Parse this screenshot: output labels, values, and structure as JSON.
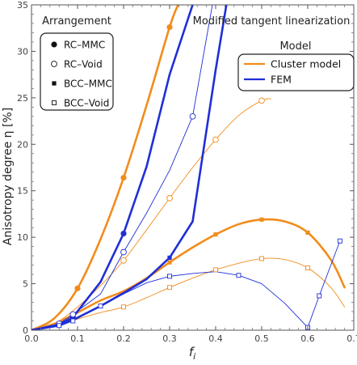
{
  "chart_data": {
    "type": "line",
    "title": "Modified tangent  linearization",
    "xlabel": "f",
    "xlabel_sub": "i",
    "ylabel": "Anisotropy degree η [%]",
    "xlim": [
      0.0,
      0.7
    ],
    "ylim": [
      0,
      35
    ],
    "x_ticks": [
      "0.0",
      "0.1",
      "0.2",
      "0.3",
      "0.4",
      "0.5",
      "0.6",
      "0.7"
    ],
    "y_ticks": [
      "0",
      "5",
      "10",
      "15",
      "20",
      "25",
      "30",
      "35"
    ],
    "grid": false,
    "legend_arrangement": {
      "title": "Arrangement",
      "placement": "top-left",
      "entries": [
        {
          "label": "RC–MMC",
          "marker": "filled-circle"
        },
        {
          "label": "RC–Void",
          "marker": "open-circle"
        },
        {
          "label": "BCC–MMC",
          "marker": "filled-square"
        },
        {
          "label": "BCC–Void",
          "marker": "open-square"
        }
      ]
    },
    "legend_model": {
      "title": "Model",
      "placement": "top-right",
      "entries": [
        {
          "label": "Cluster model",
          "color": "#f28c1a"
        },
        {
          "label": "FEM",
          "color": "#1f2fd6"
        }
      ]
    },
    "colors": {
      "cluster": "#f28c1a",
      "fem": "#1f2fd6"
    },
    "series": [
      {
        "model": "Cluster model",
        "arrangement": "RC–MMC",
        "style": "thick",
        "x": [
          0,
          0.05,
          0.1,
          0.15,
          0.2,
          0.25,
          0.3,
          0.32,
          0.34
        ],
        "y": [
          0,
          1.3,
          4.5,
          9.8,
          16.4,
          24.2,
          32.6,
          35.2,
          37.5
        ],
        "marker_x": [
          0.1,
          0.2,
          0.3
        ],
        "marker_y": [
          4.5,
          16.4,
          32.6
        ]
      },
      {
        "model": "Cluster model",
        "arrangement": "RC–Void",
        "style": "thin",
        "x": [
          0,
          0.05,
          0.1,
          0.15,
          0.2,
          0.25,
          0.3,
          0.35,
          0.4,
          0.45,
          0.5,
          0.52
        ],
        "y": [
          0,
          0.7,
          2.5,
          4.8,
          7.5,
          10.8,
          14.2,
          17.5,
          20.5,
          23.1,
          24.7,
          24.9
        ],
        "marker_x": [
          0.2,
          0.3,
          0.4,
          0.5
        ],
        "marker_y": [
          7.5,
          14.2,
          20.5,
          24.7
        ]
      },
      {
        "model": "Cluster model",
        "arrangement": "BCC–MMC",
        "style": "thick",
        "x": [
          0,
          0.05,
          0.1,
          0.15,
          0.2,
          0.25,
          0.3,
          0.35,
          0.4,
          0.45,
          0.5,
          0.55,
          0.6,
          0.65,
          0.68
        ],
        "y": [
          0,
          0.7,
          1.9,
          3.2,
          4.2,
          5.6,
          7.3,
          8.9,
          10.3,
          11.4,
          11.9,
          11.7,
          10.5,
          7.6,
          4.6
        ],
        "marker_x": [
          0.3,
          0.4,
          0.5,
          0.6
        ],
        "marker_y": [
          7.3,
          10.3,
          11.9,
          10.5
        ]
      },
      {
        "model": "Cluster model",
        "arrangement": "BCC–Void",
        "style": "thin",
        "x": [
          0,
          0.05,
          0.1,
          0.15,
          0.2,
          0.25,
          0.3,
          0.35,
          0.4,
          0.45,
          0.5,
          0.55,
          0.6,
          0.65,
          0.68
        ],
        "y": [
          0,
          0.4,
          1.2,
          1.9,
          2.5,
          3.5,
          4.6,
          5.6,
          6.5,
          7.2,
          7.7,
          7.6,
          6.7,
          4.6,
          2.5
        ],
        "marker_x": [
          0.2,
          0.3,
          0.4,
          0.5,
          0.6
        ],
        "marker_y": [
          2.5,
          4.6,
          6.5,
          7.7,
          6.7
        ]
      },
      {
        "model": "FEM",
        "arrangement": "RC–MMC",
        "style": "thick",
        "x": [
          0,
          0.06,
          0.09,
          0.15,
          0.2,
          0.25,
          0.3,
          0.35,
          0.37
        ],
        "y": [
          0,
          0.6,
          1.4,
          5.2,
          10.4,
          17.6,
          27.5,
          35.0,
          37.0
        ],
        "marker_x": [
          0.06,
          0.09,
          0.2
        ],
        "marker_y": [
          0.6,
          1.4,
          10.4
        ]
      },
      {
        "model": "FEM",
        "arrangement": "RC–Void",
        "style": "thin",
        "x": [
          0,
          0.06,
          0.09,
          0.15,
          0.2,
          0.25,
          0.3,
          0.35,
          0.4
        ],
        "y": [
          0,
          0.7,
          1.7,
          3.9,
          8.4,
          12.6,
          17.2,
          23.0,
          37.0
        ],
        "marker_x": [
          0.06,
          0.09,
          0.2,
          0.35
        ],
        "marker_y": [
          0.7,
          1.7,
          8.4,
          23.0
        ]
      },
      {
        "model": "FEM",
        "arrangement": "BCC–MMC",
        "style": "thick",
        "x": [
          0,
          0.06,
          0.09,
          0.15,
          0.2,
          0.25,
          0.3,
          0.35,
          0.4,
          0.43
        ],
        "y": [
          0,
          0.5,
          1.1,
          2.6,
          4.0,
          5.5,
          7.8,
          11.7,
          28.0,
          37.0
        ],
        "marker_x": [
          0.06,
          0.09,
          0.15,
          0.3
        ],
        "marker_y": [
          0.5,
          1.1,
          2.6,
          7.8
        ]
      },
      {
        "model": "FEM",
        "arrangement": "BCC–Void",
        "style": "thin",
        "x": [
          0,
          0.06,
          0.09,
          0.15,
          0.2,
          0.25,
          0.3,
          0.35,
          0.4,
          0.45,
          0.5,
          0.55,
          0.6,
          0.625,
          0.67
        ],
        "y": [
          0,
          0.5,
          1.0,
          2.6,
          3.9,
          5.1,
          5.8,
          6.1,
          6.3,
          5.9,
          5.0,
          2.9,
          0.3,
          3.7,
          9.6
        ],
        "marker_x": [
          0.06,
          0.09,
          0.15,
          0.3,
          0.45,
          0.6,
          0.625,
          0.67
        ],
        "marker_y": [
          0.5,
          1.0,
          2.6,
          5.8,
          5.9,
          0.3,
          3.7,
          9.6
        ]
      }
    ]
  }
}
